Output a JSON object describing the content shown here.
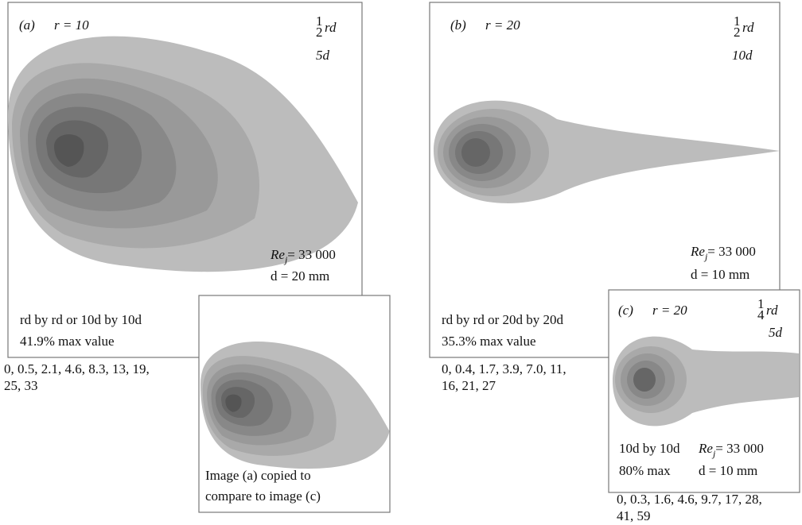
{
  "panels": [
    {
      "label": "(a)",
      "r": "r = 10",
      "scale": {
        "numerator": "1",
        "denominator": "2",
        "unit": "rd",
        "distance": "5d"
      },
      "re": {
        "symbol": "Re",
        "subscript": "j",
        "value": "= 33 000"
      },
      "diameter": "d = 20 mm",
      "window": "rd by rd or 10d by 10d",
      "max": "41.9% max value",
      "contours": [
        "0, 0.5, 2.1, 4.6, 8.3, 13, 19,",
        "25, 33"
      ]
    },
    {
      "label": "(b)",
      "r": "r = 20",
      "scale": {
        "numerator": "1",
        "denominator": "2",
        "unit": "rd",
        "distance": "10d"
      },
      "re": {
        "symbol": "Re",
        "subscript": "j",
        "value": "= 33 000"
      },
      "diameter": "d = 10 mm",
      "window": "rd by rd or 20d by 20d",
      "max": "35.3% max value",
      "contours": [
        "0, 0.4, 1.7, 3.9, 7.0, 11,",
        "16, 21, 27"
      ]
    },
    {
      "label": "(c)",
      "r": "r = 20",
      "scale": {
        "numerator": "1",
        "denominator": "4",
        "unit": "rd",
        "distance": "5d"
      },
      "re": {
        "symbol": "Re",
        "subscript": "j",
        "value": "= 33 000"
      },
      "diameter": "d = 10 mm",
      "window": "10d by 10d",
      "max": "80% max",
      "contours": [
        "0, 0.3, 1.6, 4.6, 9.7, 17, 28,",
        "41, 59"
      ]
    }
  ],
  "inset": {
    "caption": [
      "Image (a) copied to",
      "compare to image (c)"
    ]
  }
}
